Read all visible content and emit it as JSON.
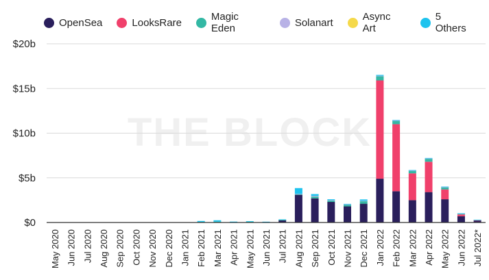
{
  "chart_data": {
    "type": "bar",
    "stacked": true,
    "title": "",
    "xlabel": "",
    "ylabel": "",
    "watermark": "THE BLOCK",
    "legend_position": "top-left",
    "grid": "horizontal",
    "y_ticks": [
      "$0",
      "$5b",
      "$10b",
      "$15b",
      "$20b"
    ],
    "y_tick_values": [
      0,
      5,
      10,
      15,
      20
    ],
    "ylim": [
      0,
      20
    ],
    "y_unit": "billions USD",
    "categories": [
      "May 2020",
      "Jun 2020",
      "Jul 2020",
      "Aug 2020",
      "Sep 2020",
      "Oct 2020",
      "Nov 2020",
      "Dec 2020",
      "Jan 2021",
      "Feb 2021",
      "Mar 2021",
      "Apr 2021",
      "May 2021",
      "Jun 2021",
      "Jul 2021",
      "Aug 2021",
      "Sep 2021",
      "Oct 2021",
      "Nov 2021",
      "Dec 2021",
      "Jan 2022",
      "Feb 2022",
      "Mar 2022",
      "Apr 2022",
      "May 2022",
      "Jun 2022",
      "Jul 2022*"
    ],
    "series": [
      {
        "name": "OpenSea",
        "color": "#2a1f5c",
        "values": [
          0.0,
          0.0,
          0.0,
          0.0,
          0.0,
          0.0,
          0.0,
          0.0,
          0.0,
          0.05,
          0.05,
          0.05,
          0.05,
          0.05,
          0.25,
          3.1,
          2.7,
          2.3,
          1.8,
          2.1,
          4.9,
          3.5,
          2.5,
          3.4,
          2.6,
          0.7,
          0.2
        ]
      },
      {
        "name": "LooksRare",
        "color": "#f0406b",
        "values": [
          0,
          0,
          0,
          0,
          0,
          0,
          0,
          0,
          0,
          0,
          0,
          0,
          0,
          0,
          0,
          0,
          0,
          0,
          0,
          0,
          11.0,
          7.5,
          3.0,
          3.4,
          1.1,
          0.2,
          0.05
        ]
      },
      {
        "name": "Magic Eden",
        "color": "#33b8a4",
        "values": [
          0,
          0,
          0,
          0,
          0,
          0,
          0,
          0,
          0,
          0.02,
          0.05,
          0.02,
          0.05,
          0.02,
          0.05,
          0.05,
          0.2,
          0.15,
          0.2,
          0.3,
          0.5,
          0.4,
          0.3,
          0.35,
          0.25,
          0.1,
          0.05
        ]
      },
      {
        "name": "Solanart",
        "color": "#b8b2e6",
        "values": [
          0,
          0,
          0,
          0,
          0,
          0,
          0,
          0,
          0,
          0,
          0,
          0,
          0,
          0,
          0,
          0.05,
          0.08,
          0.05,
          0.03,
          0.03,
          0.02,
          0.02,
          0.02,
          0.02,
          0.02,
          0.01,
          0.0
        ]
      },
      {
        "name": "Async Art",
        "color": "#f5d94a",
        "values": [
          0,
          0,
          0,
          0,
          0,
          0,
          0,
          0,
          0,
          0,
          0,
          0,
          0,
          0,
          0,
          0,
          0,
          0,
          0,
          0,
          0,
          0,
          0,
          0,
          0,
          0,
          0
        ]
      },
      {
        "name": "5 Others",
        "color": "#1ec3ee",
        "values": [
          0,
          0,
          0,
          0,
          0,
          0,
          0,
          0,
          0,
          0.1,
          0.15,
          0.03,
          0.05,
          0.02,
          0.05,
          0.65,
          0.2,
          0.1,
          0.05,
          0.15,
          0.1,
          0.05,
          0.05,
          0.05,
          0.05,
          0.02,
          0.01
        ]
      }
    ]
  }
}
